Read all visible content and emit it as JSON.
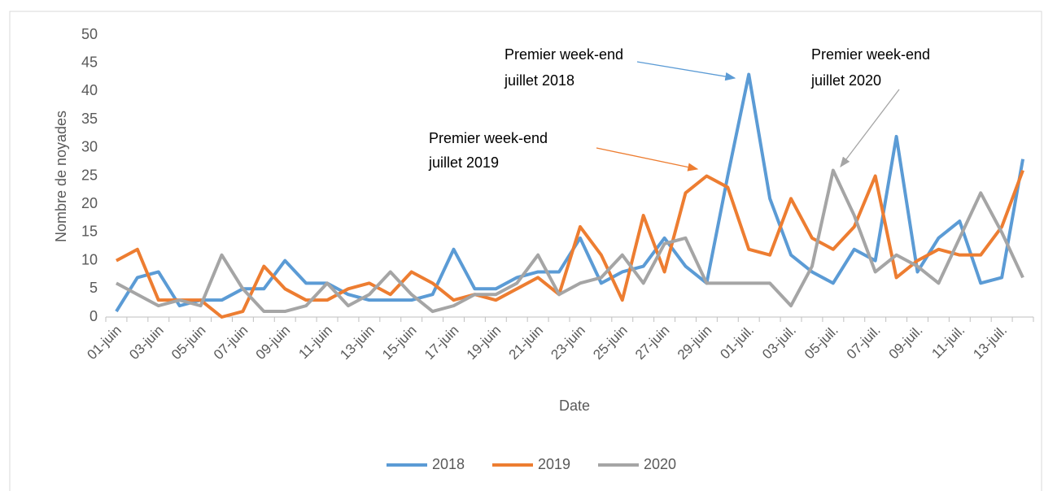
{
  "chart_data": {
    "type": "line",
    "x_label": "Date",
    "y_label": "Nombre de noyades",
    "categories": [
      "01-juin",
      null,
      "03-juin",
      null,
      "05-juin",
      null,
      "07-juin",
      null,
      "09-juin",
      null,
      "11-juin",
      null,
      "13-juin",
      null,
      "15-juin",
      null,
      "17-juin",
      null,
      "19-juin",
      null,
      "21-juin",
      null,
      "23-juin",
      null,
      "25-juin",
      null,
      "27-juin",
      null,
      "29-juin",
      null,
      "01-juil.",
      null,
      "03-juil.",
      null,
      "05-juil.",
      null,
      "07-juil.",
      null,
      "09-juil.",
      null,
      "11-juil.",
      null,
      "13-juil.",
      null
    ],
    "series": [
      {
        "name": "2018",
        "color": "#5b9bd5",
        "values": [
          1,
          7,
          8,
          2,
          3,
          3,
          5,
          5,
          10,
          6,
          6,
          4,
          3,
          3,
          3,
          4,
          12,
          5,
          5,
          7,
          8,
          8,
          14,
          6,
          8,
          9,
          14,
          9,
          6,
          25,
          43,
          21,
          11,
          8,
          6,
          12,
          10,
          32,
          8,
          14,
          17,
          6,
          7,
          28
        ]
      },
      {
        "name": "2019",
        "color": "#ed7d31",
        "values": [
          10,
          12,
          3,
          3,
          3,
          0,
          1,
          9,
          5,
          3,
          3,
          5,
          6,
          4,
          8,
          6,
          3,
          4,
          3,
          5,
          7,
          4,
          16,
          11,
          3,
          18,
          8,
          22,
          25,
          23,
          12,
          11,
          21,
          14,
          12,
          16,
          25,
          7,
          10,
          12,
          11,
          11,
          16,
          26
        ]
      },
      {
        "name": "2020",
        "color": "#a5a5a5",
        "values": [
          6,
          4,
          2,
          3,
          2,
          11,
          5,
          1,
          1,
          2,
          6,
          2,
          4,
          8,
          4,
          1,
          2,
          4,
          4,
          6,
          11,
          4,
          6,
          7,
          11,
          6,
          13,
          14,
          6,
          6,
          6,
          6,
          2,
          9,
          26,
          18,
          8,
          11,
          9,
          6,
          14,
          22,
          15,
          7
        ]
      }
    ],
    "ylim": [
      0,
      50
    ],
    "yticks": [
      0,
      5,
      10,
      15,
      20,
      25,
      30,
      35,
      40,
      45,
      50
    ],
    "grid": false,
    "legend": "bottom",
    "annotations": [
      [
        "Premier week-end",
        "juillet 2018"
      ],
      [
        "Premier week-end",
        "juillet 2019"
      ],
      [
        "Premier week-end",
        "juillet 2020"
      ]
    ]
  }
}
